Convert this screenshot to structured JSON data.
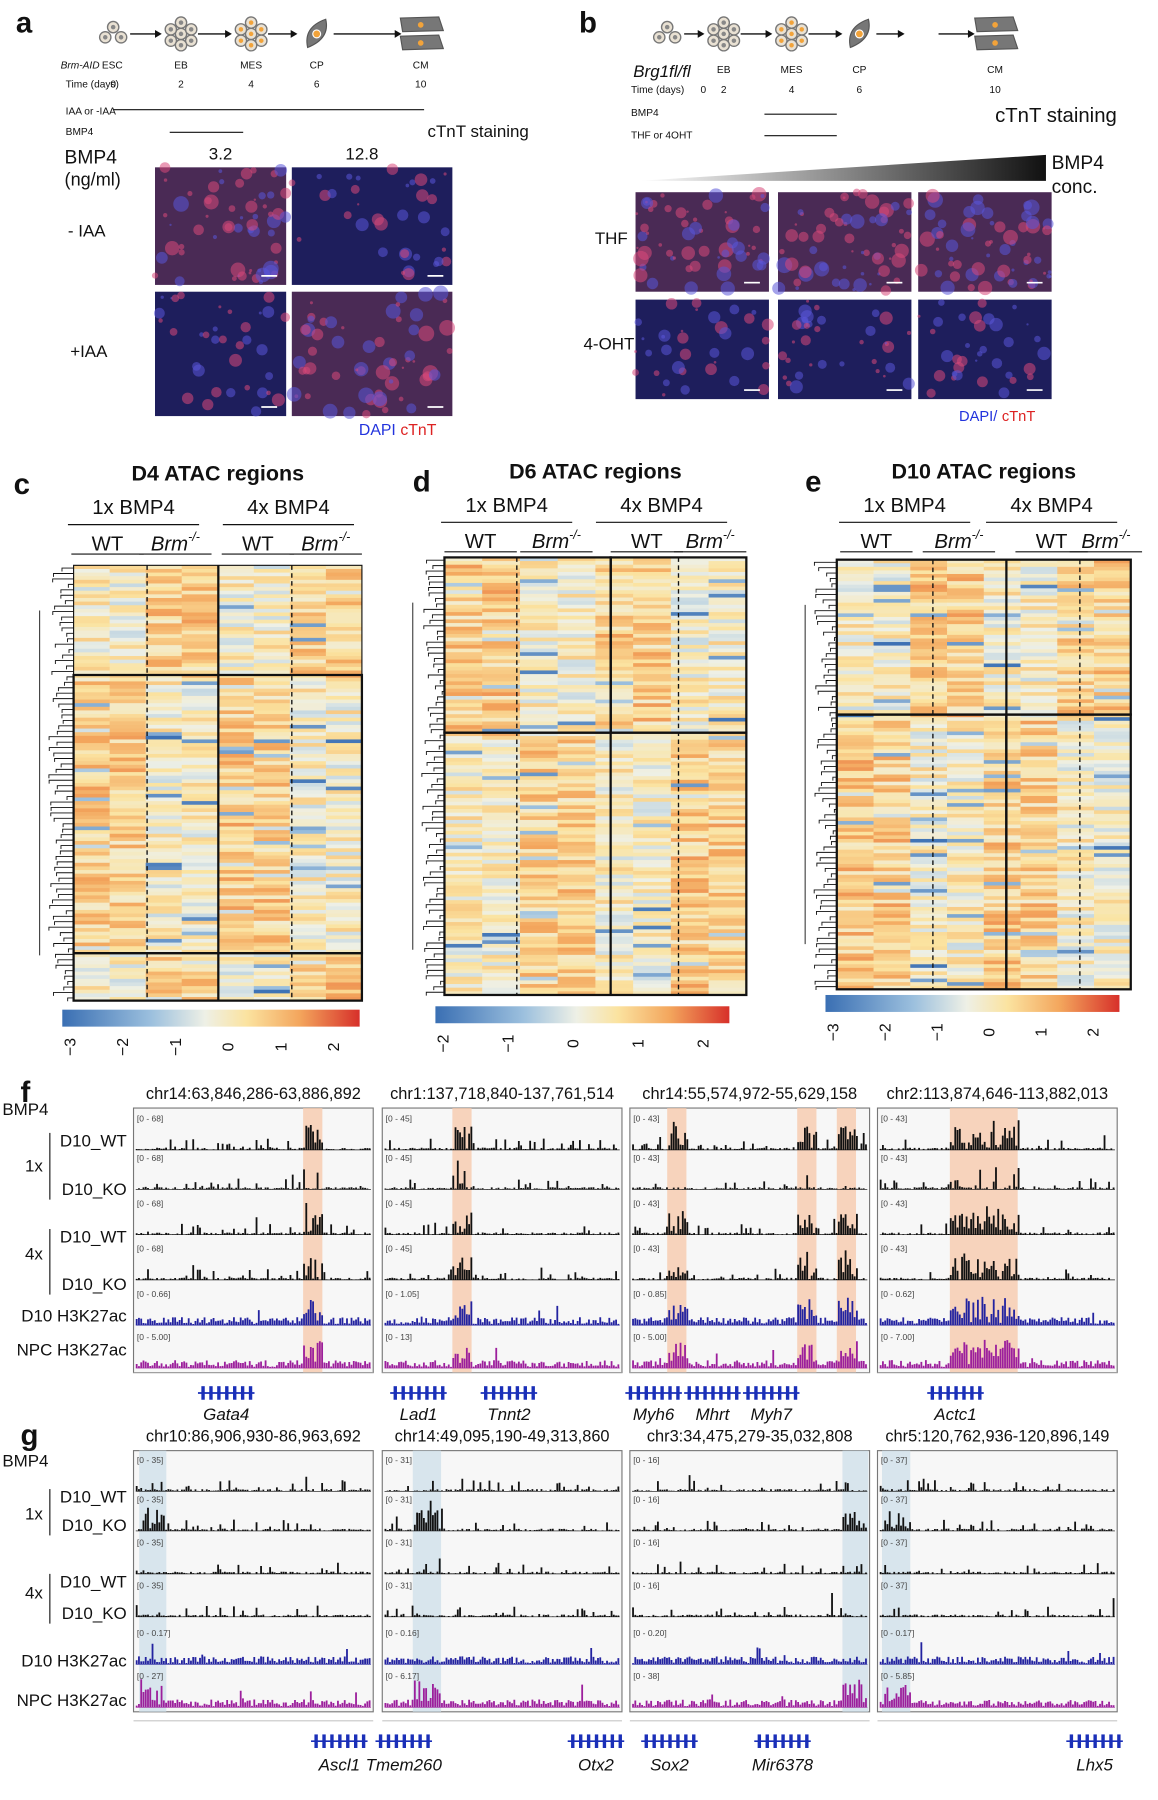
{
  "panel_a": {
    "letter": "a",
    "strain": "Brm-AID",
    "stages": [
      "ESC",
      "EB",
      "MES",
      "CP",
      "CM"
    ],
    "time_label": "Time (days)",
    "days": [
      "0",
      "2",
      "4",
      "6",
      "10"
    ],
    "treatment": "IAA or -IAA",
    "bmp4": "BMP4",
    "staining": "cTnT staining",
    "conc_label": "BMP4",
    "conc_unit": "(ng/ml)",
    "concs": [
      "3.2",
      "12.8"
    ],
    "rows": [
      "- IAA",
      "+IAA"
    ],
    "dapi": "DAPI",
    "ctnt": "cTnT"
  },
  "panel_b": {
    "letter": "b",
    "strain": "Brg1fl/fl",
    "stages": [
      "EB",
      "MES",
      "CP",
      "CM"
    ],
    "time_label": "Time (days)",
    "days": [
      "0",
      "2",
      "4",
      "6",
      "10"
    ],
    "bmp4": "BMP4",
    "treatment": "THF or 4OHT",
    "staining": "cTnT staining",
    "gradient_label": "BMP4",
    "gradient_unit": "conc.",
    "rows": [
      "THF",
      "4-OHT"
    ],
    "dapi": "DAPI/",
    "ctnt": "cTnT"
  },
  "heatmaps": [
    {
      "letter": "c",
      "title": "D4 ATAC regions",
      "groups": [
        "1x BMP4",
        "4x BMP4"
      ],
      "genotypes": [
        "WT",
        "Brm",
        "WT",
        "Brm"
      ],
      "superscript": "-/-",
      "colorbar_ticks": [
        "−3",
        "−2",
        "−1",
        "0",
        "1",
        "2"
      ]
    },
    {
      "letter": "d",
      "title": "D6 ATAC regions",
      "groups": [
        "1x BMP4",
        "4x BMP4"
      ],
      "genotypes": [
        "WT",
        "Brm",
        "WT",
        "Brm"
      ],
      "superscript": "-/-",
      "colorbar_ticks": [
        "−2",
        "−1",
        "0",
        "1",
        "2"
      ]
    },
    {
      "letter": "e",
      "title": "D10 ATAC regions",
      "groups": [
        "1x BMP4",
        "4x BMP4"
      ],
      "genotypes": [
        "WT",
        "Brm",
        "WT",
        "Brm"
      ],
      "superscript": "-/-",
      "colorbar_ticks": [
        "−3",
        "−2",
        "−1",
        "0",
        "1",
        "2"
      ]
    }
  ],
  "tracks": [
    {
      "letter": "f",
      "bmp4": "BMP4",
      "dose1": "1x",
      "dose4": "4x",
      "track_names": [
        "D10_WT",
        "D10_KO",
        "D10_WT",
        "D10_KO",
        "D10 H3K27ac",
        "NPC H3K27ac"
      ],
      "loci": [
        {
          "coord": "chr14:63,846,286-63,886,892",
          "ranges": [
            "[0 - 68]",
            "[0 - 68]",
            "[0 - 68]",
            "[0 - 68]",
            "[0 - 0.66]",
            "[0 - 5.00]"
          ],
          "genes": [
            "Gata4"
          ]
        },
        {
          "coord": "chr1:137,718,840-137,761,514",
          "ranges": [
            "[0 - 45]",
            "[0 - 45]",
            "[0 - 45]",
            "[0 - 45]",
            "[0 - 1.05]",
            "[0 - 13]"
          ],
          "genes": [
            "Lad1",
            "Tnnt2"
          ]
        },
        {
          "coord": "chr14:55,574,972-55,629,158",
          "ranges": [
            "[0 - 43]",
            "[0 - 43]",
            "[0 - 43]",
            "[0 - 43]",
            "[0 - 0.85]",
            "[0 - 5.00]"
          ],
          "genes": [
            "Myh6",
            "Mhrt",
            "Myh7"
          ]
        },
        {
          "coord": "chr2:113,874,646-113,882,013",
          "ranges": [
            "[0 - 43]",
            "[0 - 43]",
            "[0 - 43]",
            "[0 - 43]",
            "[0 - 0.62]",
            "[0 - 7.00]"
          ],
          "genes": [
            "Actc1"
          ]
        }
      ]
    },
    {
      "letter": "g",
      "bmp4": "BMP4",
      "dose1": "1x",
      "dose4": "4x",
      "track_names": [
        "D10_WT",
        "D10_KO",
        "D10_WT",
        "D10_KO",
        "D10 H3K27ac",
        "NPC H3K27ac"
      ],
      "loci": [
        {
          "coord": "chr10:86,906,930-86,963,692",
          "ranges": [
            "[0 - 35]",
            "[0 - 35]",
            "[0 - 35]",
            "[0 - 35]",
            "[0 - 0.17]",
            "[0 - 27]"
          ],
          "genes": [
            "Ascl1"
          ]
        },
        {
          "coord": "chr14:49,095,190-49,313,860",
          "ranges": [
            "[0 - 31]",
            "[0 - 31]",
            "[0 - 31]",
            "[0 - 31]",
            "[0 - 0.16]",
            "[0 - 6.17]"
          ],
          "genes": [
            "Tmem260",
            "Otx2"
          ]
        },
        {
          "coord": "chr3:34,475,279-35,032,808",
          "ranges": [
            "[0 - 16]",
            "[0 - 16]",
            "[0 - 16]",
            "[0 - 16]",
            "[0 - 0.20]",
            "[0 - 38]"
          ],
          "genes": [
            "Sox2",
            "Mir6378"
          ]
        },
        {
          "coord": "chr5:120,762,936-120,896,149",
          "ranges": [
            "[0 - 37]",
            "[0 - 37]",
            "[0 - 37]",
            "[0 - 37]",
            "[0 - 0.17]",
            "[0 - 5.85]"
          ],
          "genes": [
            "Lhx5"
          ]
        }
      ]
    }
  ]
}
